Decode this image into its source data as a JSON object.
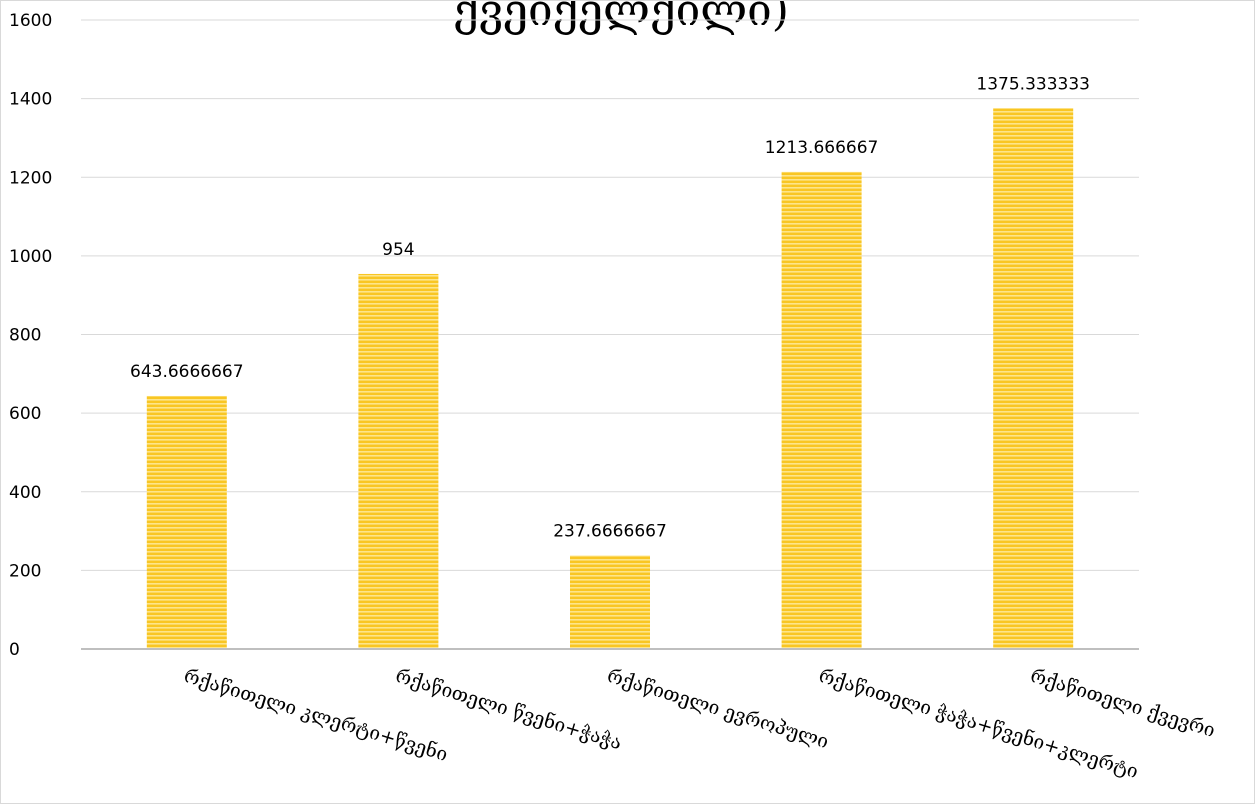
{
  "chart_data": {
    "type": "bar",
    "title": "ქვეიქელქილი)",
    "categories": [
      "რქაწითელი კლერტი+წვენი",
      "რქაწითელი წვენი+ჭაჭა",
      "რქაწითელი ევროპული",
      "რქაწითელი ჭაჭა+წვენი+კლერტი",
      "რქაწითელი ქვევრი"
    ],
    "values": [
      643.6666667,
      954,
      237.6666667,
      1213.666667,
      1375.333333
    ],
    "data_labels": [
      "643.6666667",
      "954",
      "237.6666667",
      "1213.666667",
      "1375.333333"
    ],
    "ylim": [
      0,
      1600
    ],
    "yticks": [
      0,
      200,
      400,
      600,
      800,
      1000,
      1200,
      1400,
      1600
    ],
    "grid": true,
    "legend": "none",
    "bar_color": "#F9C623",
    "bar_stripe_color": "#FDE58A"
  }
}
